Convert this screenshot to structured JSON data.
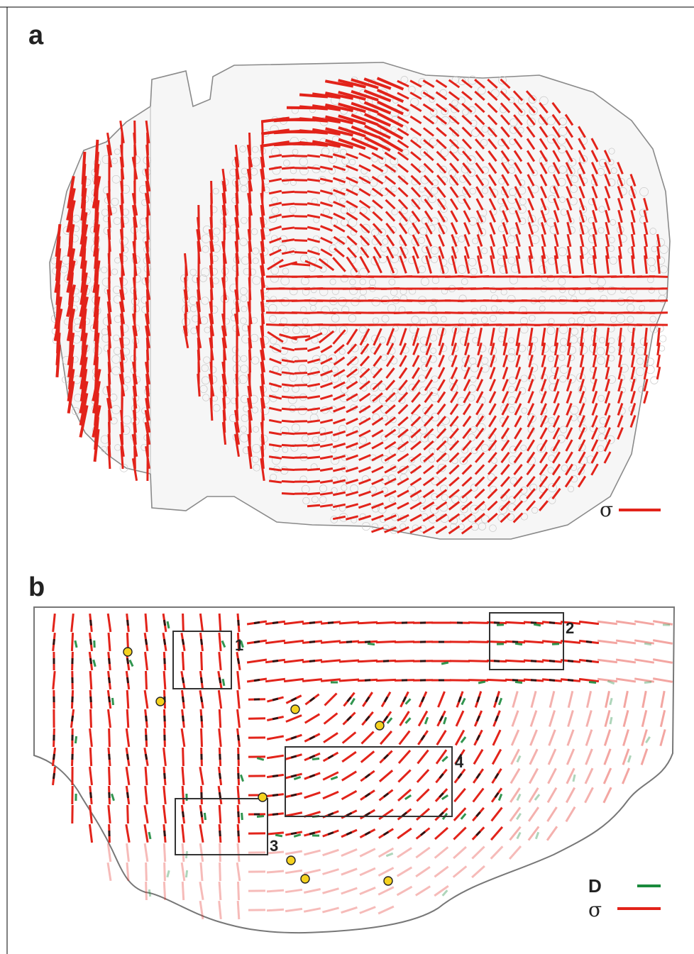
{
  "panel_a": {
    "letter": "a",
    "legend": {
      "symbol": "σ",
      "color": "#e2231a"
    }
  },
  "panel_b": {
    "letter": "b",
    "boxes": [
      {
        "label": "1"
      },
      {
        "label": "2"
      },
      {
        "label": "3"
      },
      {
        "label": "4"
      }
    ],
    "legend": [
      {
        "symbol": "D",
        "color": "#1a8a3c"
      },
      {
        "symbol": "σ",
        "color": "#e2231a"
      }
    ],
    "marker_color": "#f5d21f"
  },
  "colors": {
    "stress": "#e2231a",
    "deformation": "#1a8a3c",
    "overlap": "#111111",
    "tissue_outline": "#888888",
    "frame": "#000000"
  }
}
